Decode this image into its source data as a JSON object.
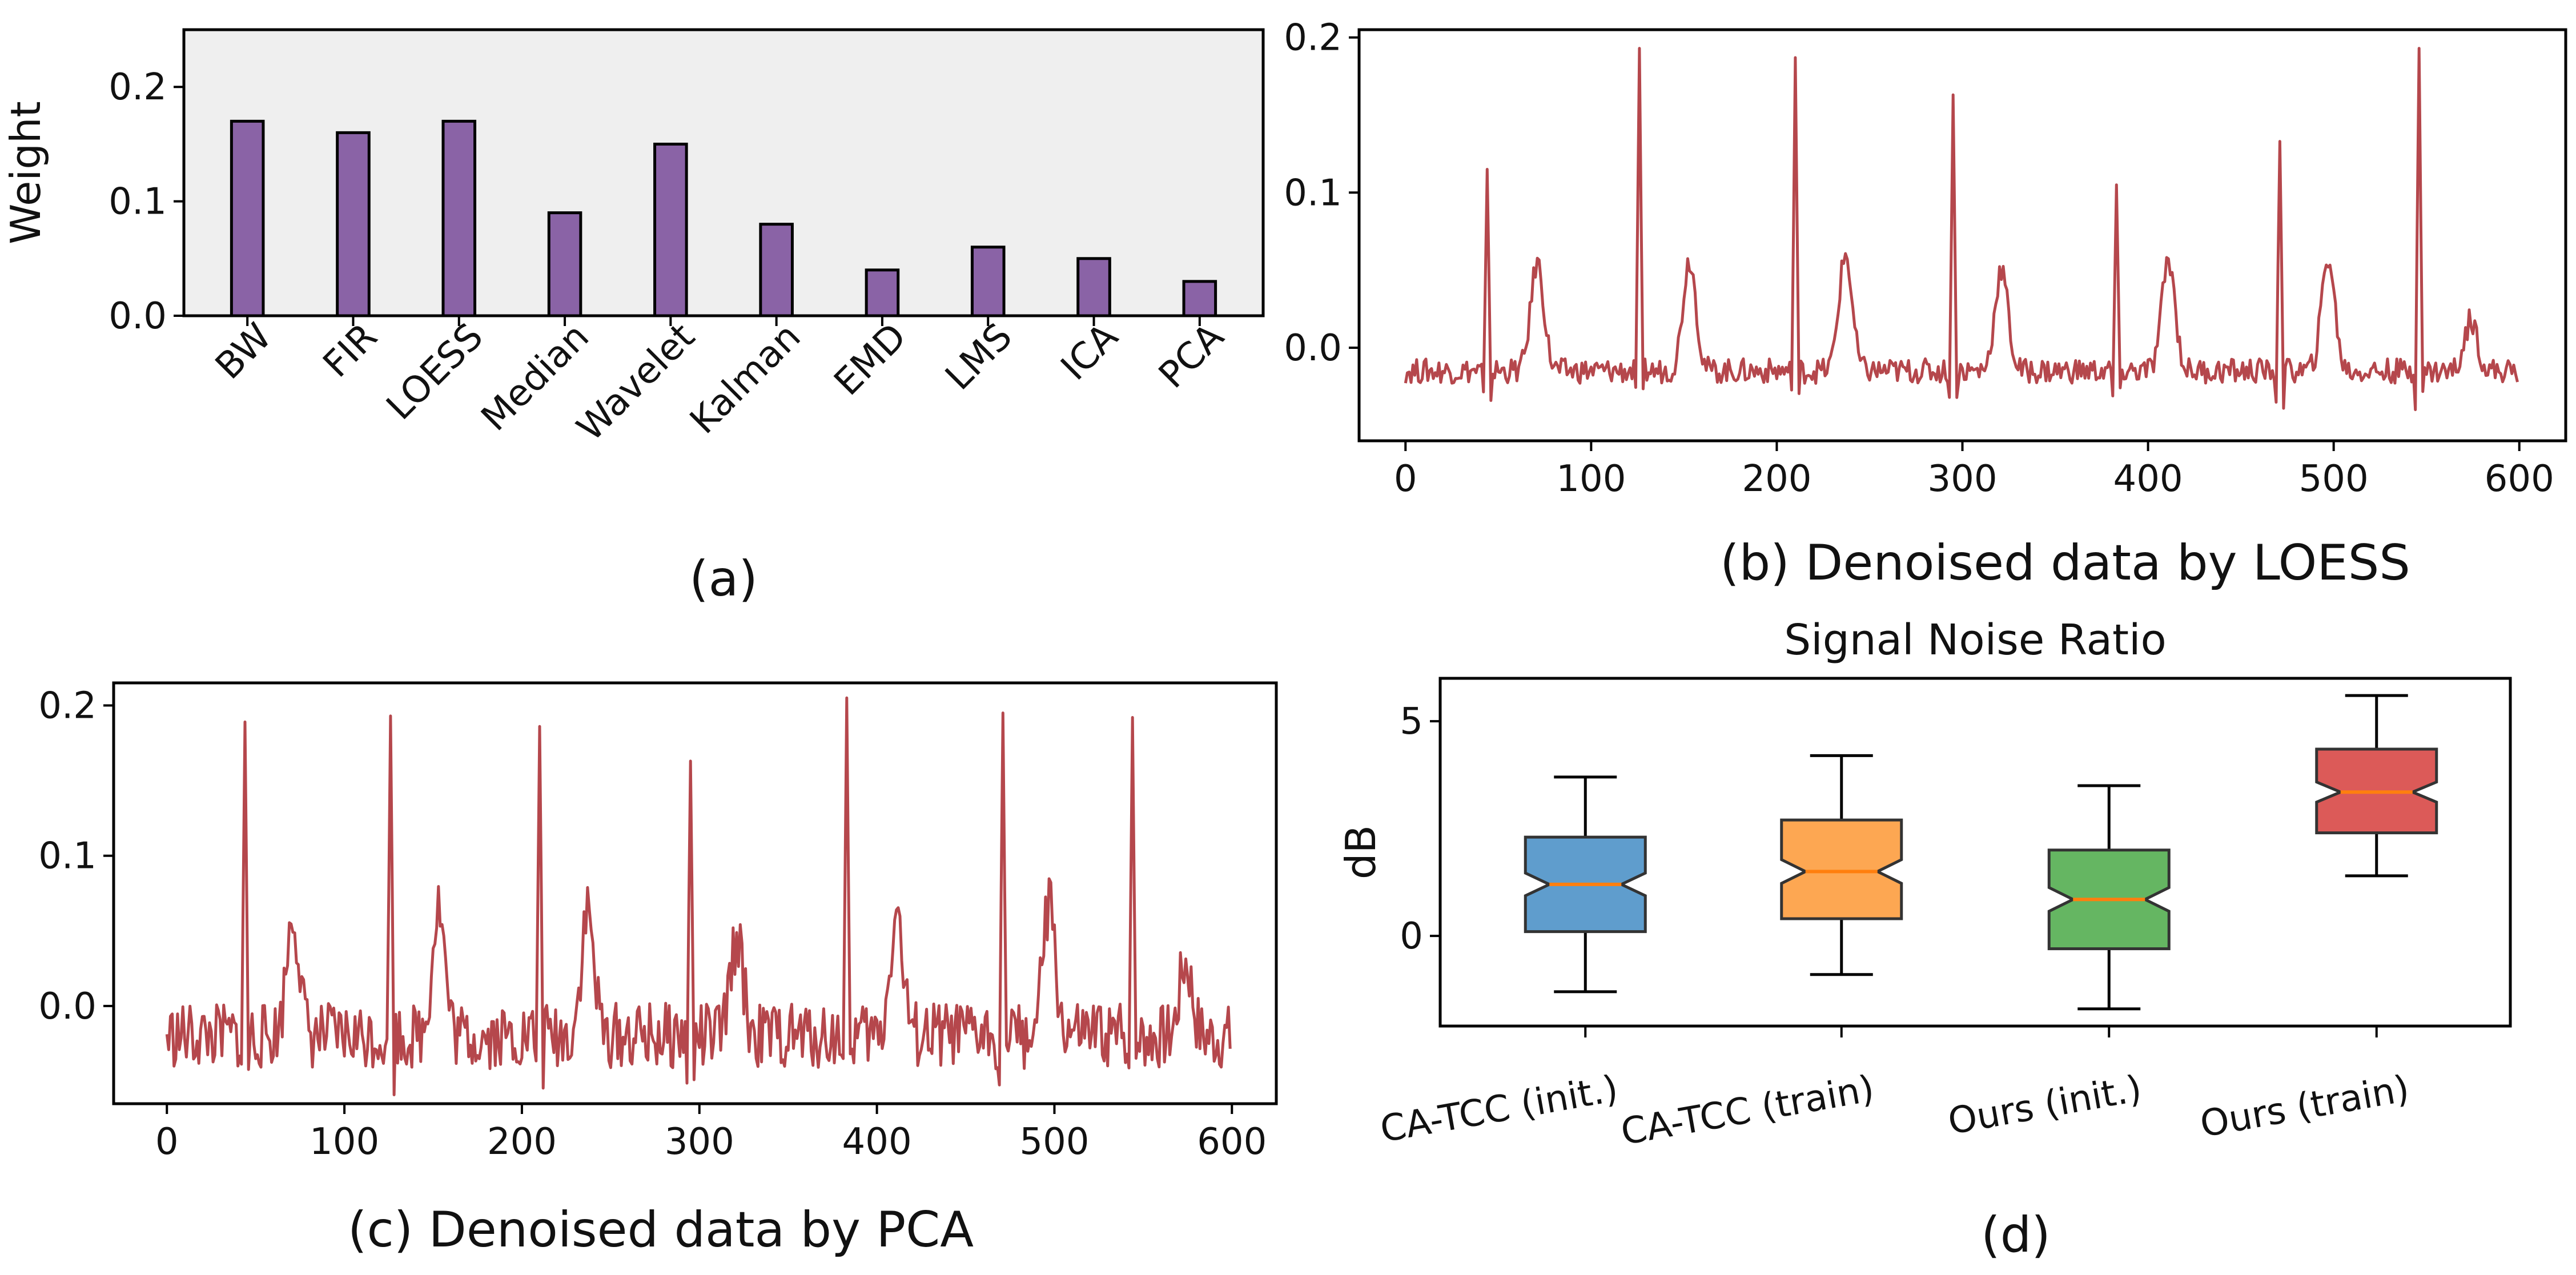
{
  "colors": {
    "bar": "#8a63a6",
    "line": "#b5474c",
    "panel_a_bg": "#efefef",
    "box_fills": [
      "#5f9dcd",
      "#fda752",
      "#65b662",
      "#dc5a58"
    ],
    "median": "#ff7f0e"
  },
  "chart_data": [
    {
      "id": "a",
      "type": "bar",
      "caption": "(a)",
      "ylabel": "Weight",
      "categories": [
        "BW",
        "FIR",
        "LOESS",
        "Median",
        "Wavelet",
        "Kalman",
        "EMD",
        "LMS",
        "ICA",
        "PCA"
      ],
      "values": [
        0.17,
        0.16,
        0.17,
        0.09,
        0.15,
        0.08,
        0.04,
        0.06,
        0.05,
        0.03
      ],
      "ylim": [
        0,
        0.25
      ],
      "yticks": [
        0.0,
        0.1,
        0.2
      ],
      "ytick_labels": [
        "0.0",
        "0.1",
        "0.2"
      ]
    },
    {
      "id": "b",
      "type": "line",
      "caption": "(b) Denoised data by LOESS",
      "xlim": [
        -25,
        625
      ],
      "ylim": [
        -0.06,
        0.205
      ],
      "xticks": [
        0,
        100,
        200,
        300,
        400,
        500,
        600
      ],
      "xtick_labels": [
        "0",
        "100",
        "200",
        "300",
        "400",
        "500",
        "600"
      ],
      "yticks": [
        0.0,
        0.1,
        0.2
      ],
      "ytick_labels": [
        "0.0",
        "0.1",
        "0.2"
      ],
      "n": 600,
      "baseline": -0.015,
      "noise_amp": 0.008,
      "r_peaks": [
        [
          44,
          0.115
        ],
        [
          126,
          0.193
        ],
        [
          210,
          0.187
        ],
        [
          295,
          0.163
        ],
        [
          383,
          0.105
        ],
        [
          471,
          0.133
        ],
        [
          546,
          0.193
        ]
      ],
      "t_waves": [
        [
          71,
          0.055
        ],
        [
          153,
          0.057
        ],
        [
          237,
          0.06
        ],
        [
          321,
          0.05
        ],
        [
          411,
          0.057
        ],
        [
          497,
          0.058
        ],
        [
          574,
          0.018
        ]
      ]
    },
    {
      "id": "c",
      "type": "line",
      "caption": "(c) Denoised data by PCA",
      "xlim": [
        -30,
        625
      ],
      "ylim": [
        -0.065,
        0.215
      ],
      "xticks": [
        0,
        100,
        200,
        300,
        400,
        500,
        600
      ],
      "xtick_labels": [
        "0",
        "100",
        "200",
        "300",
        "400",
        "500",
        "600"
      ],
      "yticks": [
        0.0,
        0.1,
        0.2
      ],
      "ytick_labels": [
        "0.0",
        "0.1",
        "0.2"
      ],
      "n": 600,
      "baseline": -0.02,
      "noise_amp": 0.022,
      "r_peaks": [
        [
          44,
          0.189
        ],
        [
          126,
          0.193
        ],
        [
          210,
          0.186
        ],
        [
          295,
          0.163
        ],
        [
          383,
          0.205
        ],
        [
          471,
          0.195
        ],
        [
          544,
          0.192
        ]
      ],
      "t_waves": [
        [
          71,
          0.062
        ],
        [
          153,
          0.068
        ],
        [
          237,
          0.063
        ],
        [
          321,
          0.045
        ],
        [
          411,
          0.062
        ],
        [
          497,
          0.065
        ],
        [
          574,
          0.03
        ]
      ]
    },
    {
      "id": "d",
      "type": "box",
      "caption": "(d)",
      "title": "Signal Noise Ratio",
      "ylabel": "dB",
      "ylim": [
        -2.1,
        6.0
      ],
      "yticks": [
        0,
        5
      ],
      "ytick_labels": [
        "0",
        "5"
      ],
      "categories": [
        "CA-TCC (init.)",
        "CA-TCC (train)",
        "Ours (init.)",
        "Ours (train)"
      ],
      "boxes": [
        {
          "whisker_low": -1.3,
          "q1": 0.1,
          "median": 1.2,
          "q3": 2.3,
          "whisker_high": 3.7
        },
        {
          "whisker_low": -0.9,
          "q1": 0.4,
          "median": 1.5,
          "q3": 2.7,
          "whisker_high": 4.2
        },
        {
          "whisker_low": -1.7,
          "q1": -0.3,
          "median": 0.85,
          "q3": 2.0,
          "whisker_high": 3.5
        },
        {
          "whisker_low": 1.4,
          "q1": 2.4,
          "median": 3.35,
          "q3": 4.35,
          "whisker_high": 5.6
        }
      ]
    }
  ]
}
